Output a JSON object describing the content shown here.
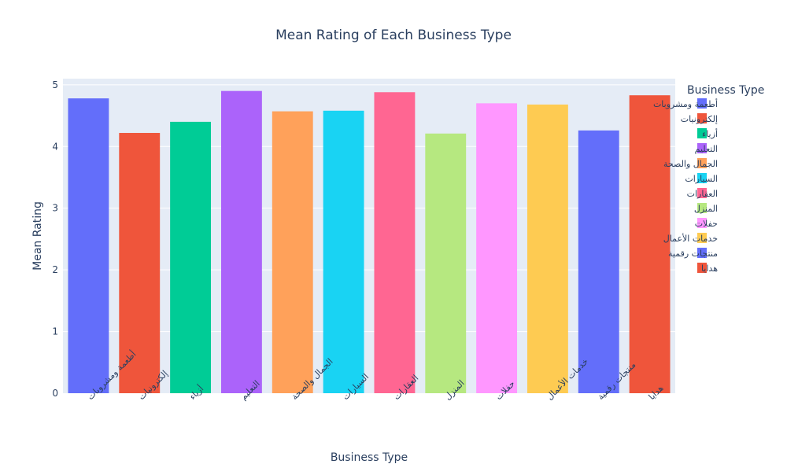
{
  "chart_data": {
    "type": "bar",
    "title": "Mean Rating of Each Business Type",
    "xlabel": "Business Type",
    "ylabel": "Mean Rating",
    "ylim": [
      0,
      5.1
    ],
    "yticks": [
      0,
      1,
      2,
      3,
      4,
      5
    ],
    "grid": true,
    "legend_title": "Business Type",
    "legend_position": "right",
    "categories": [
      "أطعمة ومشروبات",
      "إلكترونيات",
      "أزياء",
      "التعليم",
      "الجمال والصحة",
      "السيارات",
      "العقارات",
      "المنزل",
      "حفلات",
      "خدمات الأعمال",
      "منتجات رقمية",
      "هدايا"
    ],
    "values": [
      4.78,
      4.22,
      4.4,
      4.9,
      4.57,
      4.58,
      4.88,
      4.21,
      4.7,
      4.68,
      4.26,
      4.83
    ],
    "colors": [
      "#636efa",
      "#ef553b",
      "#00cc96",
      "#ab63fa",
      "#ffa15a",
      "#19d3f3",
      "#ff6692",
      "#b6e880",
      "#ff97ff",
      "#fecb52",
      "#636efa",
      "#ef553b"
    ],
    "plot_background": "#e5ecf6",
    "text_color": "#2a3f5f"
  }
}
